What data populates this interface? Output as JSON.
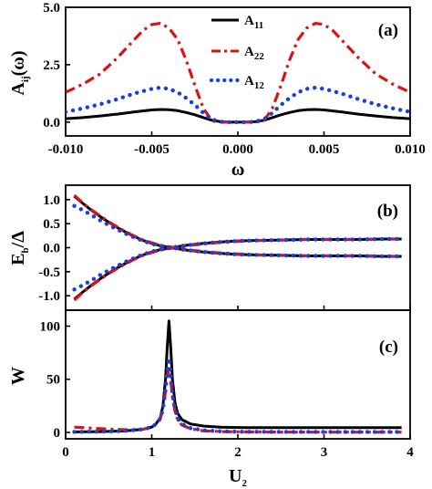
{
  "chart_data": [
    {
      "panel": "(a)",
      "type": "line",
      "xlabel": "ω",
      "ylabel_main": "A",
      "ylabel_sub": "ij",
      "ylabel_tail": "(ω)",
      "xlim": [
        -0.01,
        0.01
      ],
      "ylim": [
        -0.6,
        5.0
      ],
      "xticks": [
        "-0.010",
        "-0.005",
        "0.000",
        "0.005",
        "0.010"
      ],
      "xtick_values": [
        -0.01,
        -0.005,
        0.0,
        0.005,
        0.01
      ],
      "yticks": [
        "0.0",
        "2.5",
        "5.0"
      ],
      "ytick_values": [
        0.0,
        2.5,
        5.0
      ],
      "legend_position": "top-center",
      "series": [
        {
          "name_main": "A",
          "name_sub": "11",
          "style": "solid",
          "color": "#000000",
          "x": [
            -0.01,
            -0.009,
            -0.008,
            -0.007,
            -0.006,
            -0.005,
            -0.0045,
            -0.004,
            -0.0035,
            -0.003,
            -0.0025,
            -0.002,
            -0.0015,
            -0.001,
            -0.0005,
            0.0,
            0.0005,
            0.001,
            0.0015,
            0.002,
            0.0025,
            0.003,
            0.0035,
            0.004,
            0.0045,
            0.005,
            0.006,
            0.007,
            0.008,
            0.009,
            0.01
          ],
          "y": [
            0.15,
            0.2,
            0.27,
            0.35,
            0.45,
            0.53,
            0.55,
            0.54,
            0.5,
            0.42,
            0.32,
            0.2,
            0.08,
            0.02,
            0.0,
            0.0,
            0.0,
            0.02,
            0.08,
            0.2,
            0.32,
            0.42,
            0.5,
            0.54,
            0.55,
            0.53,
            0.45,
            0.35,
            0.27,
            0.2,
            0.15
          ]
        },
        {
          "name_main": "A",
          "name_sub": "22",
          "style": "dash-dot",
          "color": "#dd1111",
          "x": [
            -0.01,
            -0.009,
            -0.008,
            -0.007,
            -0.006,
            -0.0055,
            -0.005,
            -0.0045,
            -0.004,
            -0.0035,
            -0.003,
            -0.0025,
            -0.002,
            -0.0015,
            -0.001,
            -0.0005,
            0.0,
            0.0005,
            0.001,
            0.0015,
            0.002,
            0.0025,
            0.003,
            0.0035,
            0.004,
            0.0045,
            0.005,
            0.0055,
            0.006,
            0.007,
            0.008,
            0.009,
            0.01
          ],
          "y": [
            1.3,
            1.65,
            2.1,
            2.8,
            3.6,
            4.0,
            4.25,
            4.3,
            4.1,
            3.6,
            2.7,
            1.6,
            0.6,
            0.05,
            0.0,
            0.0,
            0.0,
            0.0,
            0.0,
            0.05,
            0.6,
            1.6,
            2.7,
            3.6,
            4.1,
            4.3,
            4.25,
            4.0,
            3.6,
            2.8,
            2.1,
            1.65,
            1.3
          ]
        },
        {
          "name_main": "A",
          "name_sub": "12",
          "style": "dotted",
          "color": "#1a3fe0",
          "x": [
            -0.01,
            -0.009,
            -0.008,
            -0.007,
            -0.006,
            -0.005,
            -0.0045,
            -0.004,
            -0.0035,
            -0.003,
            -0.0025,
            -0.002,
            -0.0015,
            -0.001,
            -0.0005,
            0.0,
            0.0005,
            0.001,
            0.0015,
            0.002,
            0.0025,
            0.003,
            0.0035,
            0.004,
            0.0045,
            0.005,
            0.006,
            0.007,
            0.008,
            0.009,
            0.01
          ],
          "y": [
            0.45,
            0.6,
            0.78,
            1.0,
            1.25,
            1.45,
            1.5,
            1.45,
            1.3,
            1.05,
            0.75,
            0.4,
            0.12,
            0.02,
            0.0,
            0.0,
            0.0,
            0.02,
            0.12,
            0.4,
            0.75,
            1.05,
            1.3,
            1.45,
            1.5,
            1.45,
            1.25,
            1.0,
            0.78,
            0.6,
            0.45
          ]
        }
      ]
    },
    {
      "panel": "(b)",
      "type": "line",
      "ylabel_main": "E",
      "ylabel_sub": "b",
      "ylabel_tail": "/Δ",
      "xlim": [
        0,
        4
      ],
      "ylim": [
        -1.3,
        1.3
      ],
      "yticks": [
        "1.0",
        "0.5",
        "0.0",
        "-0.5",
        "-1.0"
      ],
      "ytick_values": [
        1.0,
        0.5,
        0.0,
        -0.5,
        -1.0
      ],
      "series": [
        {
          "branch": "upper",
          "style": "solid",
          "color": "#000000",
          "x": [
            0.1,
            0.2,
            0.3,
            0.4,
            0.5,
            0.6,
            0.7,
            0.8,
            0.9,
            1.0,
            1.1,
            1.2,
            1.3,
            1.4,
            1.6,
            1.8,
            2.0,
            2.2,
            2.5,
            2.8,
            3.1,
            3.4,
            3.7,
            3.9
          ],
          "y": [
            1.07,
            0.92,
            0.78,
            0.65,
            0.53,
            0.42,
            0.32,
            0.23,
            0.15,
            0.09,
            0.04,
            0.01,
            -0.02,
            -0.05,
            -0.09,
            -0.12,
            -0.14,
            -0.15,
            -0.16,
            -0.17,
            -0.17,
            -0.17,
            -0.18,
            -0.18
          ]
        },
        {
          "branch": "lower",
          "style": "solid",
          "color": "#000000",
          "x": [
            0.1,
            0.2,
            0.3,
            0.4,
            0.5,
            0.6,
            0.7,
            0.8,
            0.9,
            1.0,
            1.1,
            1.2,
            1.3,
            1.4,
            1.6,
            1.8,
            2.0,
            2.2,
            2.5,
            2.8,
            3.1,
            3.4,
            3.7,
            3.9
          ],
          "y": [
            -1.07,
            -0.92,
            -0.78,
            -0.65,
            -0.53,
            -0.42,
            -0.32,
            -0.23,
            -0.15,
            -0.09,
            -0.04,
            -0.01,
            0.02,
            0.05,
            0.09,
            0.12,
            0.14,
            0.15,
            0.16,
            0.17,
            0.17,
            0.17,
            0.18,
            0.18
          ]
        },
        {
          "branch": "upper",
          "style": "dash-dot",
          "color": "#dd1111",
          "x": [
            0.1,
            0.2,
            0.3,
            0.4,
            0.5,
            0.6,
            0.7,
            0.8,
            0.9,
            1.0,
            1.1,
            1.2,
            1.3,
            1.4,
            1.6,
            1.8,
            2.0,
            2.2,
            2.5,
            2.8,
            3.1,
            3.4,
            3.7,
            3.9
          ],
          "y": [
            1.09,
            0.93,
            0.79,
            0.66,
            0.54,
            0.43,
            0.33,
            0.24,
            0.16,
            0.1,
            0.05,
            0.02,
            -0.01,
            -0.04,
            -0.08,
            -0.11,
            -0.13,
            -0.15,
            -0.16,
            -0.17,
            -0.17,
            -0.17,
            -0.18,
            -0.18
          ]
        },
        {
          "branch": "lower",
          "style": "dash-dot",
          "color": "#dd1111",
          "x": [
            0.1,
            0.2,
            0.3,
            0.4,
            0.5,
            0.6,
            0.7,
            0.8,
            0.9,
            1.0,
            1.1,
            1.2,
            1.3,
            1.4,
            1.6,
            1.8,
            2.0,
            2.2,
            2.5,
            2.8,
            3.1,
            3.4,
            3.7,
            3.9
          ],
          "y": [
            -1.09,
            -0.93,
            -0.79,
            -0.66,
            -0.54,
            -0.43,
            -0.33,
            -0.24,
            -0.16,
            -0.1,
            -0.05,
            -0.02,
            0.01,
            0.04,
            0.08,
            0.11,
            0.13,
            0.15,
            0.16,
            0.17,
            0.17,
            0.17,
            0.18,
            0.18
          ]
        },
        {
          "branch": "upper",
          "style": "dotted",
          "color": "#1a3fe0",
          "x": [
            0.1,
            0.2,
            0.3,
            0.4,
            0.5,
            0.6,
            0.7,
            0.8,
            0.9,
            1.0,
            1.1,
            1.2,
            1.3,
            1.4,
            1.6,
            1.8,
            2.0,
            2.2,
            2.5,
            2.8,
            3.1,
            3.4,
            3.7,
            3.9
          ],
          "y": [
            0.87,
            0.78,
            0.68,
            0.57,
            0.47,
            0.38,
            0.29,
            0.21,
            0.14,
            0.08,
            0.04,
            0.01,
            -0.02,
            -0.05,
            -0.09,
            -0.12,
            -0.14,
            -0.15,
            -0.16,
            -0.17,
            -0.17,
            -0.17,
            -0.18,
            -0.18
          ]
        },
        {
          "branch": "lower",
          "style": "dotted",
          "color": "#1a3fe0",
          "x": [
            0.1,
            0.2,
            0.3,
            0.4,
            0.5,
            0.6,
            0.7,
            0.8,
            0.9,
            1.0,
            1.1,
            1.2,
            1.3,
            1.4,
            1.6,
            1.8,
            2.0,
            2.2,
            2.5,
            2.8,
            3.1,
            3.4,
            3.7,
            3.9
          ],
          "y": [
            -0.87,
            -0.78,
            -0.68,
            -0.57,
            -0.47,
            -0.38,
            -0.29,
            -0.21,
            -0.14,
            -0.08,
            -0.04,
            -0.01,
            0.02,
            0.05,
            0.09,
            0.12,
            0.14,
            0.15,
            0.16,
            0.17,
            0.17,
            0.17,
            0.18,
            0.18
          ]
        }
      ]
    },
    {
      "panel": "(c)",
      "type": "line",
      "xlabel_main": "U",
      "xlabel_sub": "2",
      "ylabel": "W",
      "xlim": [
        0,
        4
      ],
      "ylim": [
        -6,
        115
      ],
      "xticks": [
        "0",
        "1",
        "2",
        "3",
        "4"
      ],
      "xtick_values": [
        0,
        1,
        2,
        3,
        4
      ],
      "yticks": [
        "100",
        "50",
        "0"
      ],
      "ytick_values": [
        100,
        50,
        0
      ],
      "series": [
        {
          "style": "solid",
          "color": "#000000",
          "x": [
            0.1,
            0.4,
            0.7,
            0.9,
            1.0,
            1.05,
            1.1,
            1.13,
            1.16,
            1.18,
            1.2,
            1.22,
            1.24,
            1.27,
            1.3,
            1.35,
            1.45,
            1.6,
            1.8,
            2.1,
            2.5,
            3.0,
            3.5,
            3.9
          ],
          "y": [
            0.5,
            0.8,
            1.5,
            3,
            5,
            8,
            14,
            25,
            50,
            80,
            105,
            80,
            50,
            28,
            18,
            12,
            8,
            6,
            5,
            4.5,
            4.5,
            4.5,
            4.5,
            4.5
          ]
        },
        {
          "style": "dash-dot",
          "color": "#dd1111",
          "x": [
            0.1,
            0.4,
            0.7,
            0.9,
            1.0,
            1.05,
            1.1,
            1.13,
            1.16,
            1.18,
            1.2,
            1.22,
            1.24,
            1.27,
            1.3,
            1.35,
            1.45,
            1.6,
            1.8,
            2.1,
            2.5,
            3.0,
            3.5,
            3.9
          ],
          "y": [
            5,
            3.5,
            2.5,
            3,
            5,
            8,
            13,
            22,
            38,
            52,
            60,
            50,
            34,
            20,
            12,
            7,
            3.5,
            1.5,
            0.8,
            0.5,
            0.3,
            0.3,
            0.3,
            0.3
          ]
        },
        {
          "style": "dotted",
          "color": "#1a3fe0",
          "x": [
            0.1,
            0.4,
            0.7,
            0.9,
            1.0,
            1.05,
            1.1,
            1.13,
            1.16,
            1.18,
            1.2,
            1.22,
            1.24,
            1.27,
            1.3,
            1.35,
            1.45,
            1.6,
            1.8,
            2.1,
            2.5,
            3.0,
            3.5,
            3.9
          ],
          "y": [
            0.5,
            0.8,
            1.5,
            3,
            5,
            8,
            13,
            22,
            40,
            58,
            70,
            55,
            36,
            22,
            13,
            8,
            4,
            2,
            1,
            0.6,
            0.5,
            0.5,
            0.5,
            0.5
          ]
        }
      ]
    }
  ]
}
